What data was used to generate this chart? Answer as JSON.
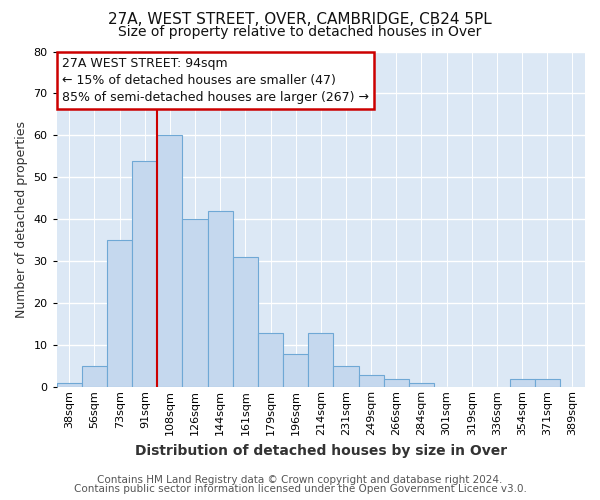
{
  "title": "27A, WEST STREET, OVER, CAMBRIDGE, CB24 5PL",
  "subtitle": "Size of property relative to detached houses in Over",
  "xlabel": "Distribution of detached houses by size in Over",
  "ylabel": "Number of detached properties",
  "bar_labels": [
    "38sqm",
    "56sqm",
    "73sqm",
    "91sqm",
    "108sqm",
    "126sqm",
    "144sqm",
    "161sqm",
    "179sqm",
    "196sqm",
    "214sqm",
    "231sqm",
    "249sqm",
    "266sqm",
    "284sqm",
    "301sqm",
    "319sqm",
    "336sqm",
    "354sqm",
    "371sqm",
    "389sqm"
  ],
  "bar_values": [
    1,
    5,
    35,
    54,
    60,
    40,
    42,
    31,
    13,
    8,
    13,
    5,
    3,
    2,
    1,
    0,
    0,
    0,
    2,
    2,
    0
  ],
  "bar_color": "#c5d8ee",
  "bar_edge_color": "#6fa8d5",
  "ylim": [
    0,
    80
  ],
  "yticks": [
    0,
    10,
    20,
    30,
    40,
    50,
    60,
    70,
    80
  ],
  "property_line_x": 3.5,
  "property_line_color": "#cc0000",
  "annotation_title": "27A WEST STREET: 94sqm",
  "annotation_line1": "← 15% of detached houses are smaller (47)",
  "annotation_line2": "85% of semi-detached houses are larger (267) →",
  "annotation_box_facecolor": "#ffffff",
  "annotation_box_edgecolor": "#cc0000",
  "footer_line1": "Contains HM Land Registry data © Crown copyright and database right 2024.",
  "footer_line2": "Contains public sector information licensed under the Open Government Licence v3.0.",
  "figure_facecolor": "#ffffff",
  "axes_facecolor": "#dce8f5",
  "grid_color": "#ffffff",
  "title_fontsize": 11,
  "subtitle_fontsize": 10,
  "xlabel_fontsize": 10,
  "ylabel_fontsize": 9,
  "tick_fontsize": 8,
  "annotation_fontsize": 9,
  "footer_fontsize": 7.5
}
